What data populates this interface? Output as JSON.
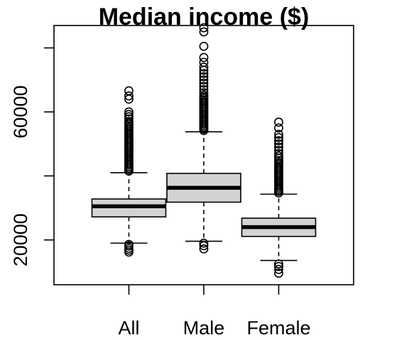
{
  "chart_data": {
    "type": "boxplot",
    "title": "Median income ($)",
    "xlabel": "",
    "ylabel": "",
    "categories": [
      "All",
      "Male",
      "Female"
    ],
    "ylim": [
      6000,
      87000
    ],
    "yticks": [
      20000,
      40000,
      60000,
      80000
    ],
    "ytick_labels": [
      "20000",
      "",
      "60000",
      ""
    ],
    "grid": false,
    "box_fill": "#d3d3d3",
    "boxes": [
      {
        "name": "All",
        "whisker_low": 19000,
        "q1": 27200,
        "median": 30500,
        "q3": 32800,
        "whisker_high": 41000,
        "outliers": [
          16200,
          16800,
          17400,
          18100,
          18600,
          41500,
          42000,
          42500,
          43000,
          43500,
          44000,
          44500,
          45000,
          45500,
          46000,
          46500,
          47000,
          47500,
          48000,
          48500,
          49000,
          49500,
          50000,
          50500,
          51000,
          51500,
          52000,
          52500,
          53000,
          53500,
          54000,
          54500,
          55000,
          55500,
          56000,
          56500,
          57000,
          57800,
          58500,
          59200,
          60000,
          64000,
          65000,
          66600
        ]
      },
      {
        "name": "Male",
        "whisker_low": 19600,
        "q1": 31800,
        "median": 36300,
        "q3": 40800,
        "whisker_high": 53800,
        "outliers": [
          17200,
          18200,
          19000,
          54200,
          54700,
          55200,
          55700,
          56200,
          56700,
          57200,
          57700,
          58200,
          58700,
          59200,
          59700,
          60200,
          60700,
          61200,
          61700,
          62200,
          62700,
          63200,
          63700,
          64200,
          64700,
          65200,
          66000,
          67000,
          68000,
          69000,
          70000,
          71000,
          72000,
          73000,
          74000,
          75500,
          77000,
          80500,
          85000,
          86300
        ]
      },
      {
        "name": "Female",
        "whisker_low": 13600,
        "q1": 21100,
        "median": 24000,
        "q3": 26800,
        "whisker_high": 34300,
        "outliers": [
          9600,
          10800,
          11700,
          12500,
          34700,
          35200,
          35700,
          36200,
          36700,
          37200,
          37700,
          38200,
          38700,
          39200,
          39700,
          40200,
          40700,
          41200,
          41700,
          42200,
          42700,
          43200,
          43700,
          44200,
          44800,
          45500,
          46200,
          47000,
          48000,
          49000,
          50000,
          51000,
          52000,
          53000,
          55000,
          56800
        ]
      }
    ]
  }
}
